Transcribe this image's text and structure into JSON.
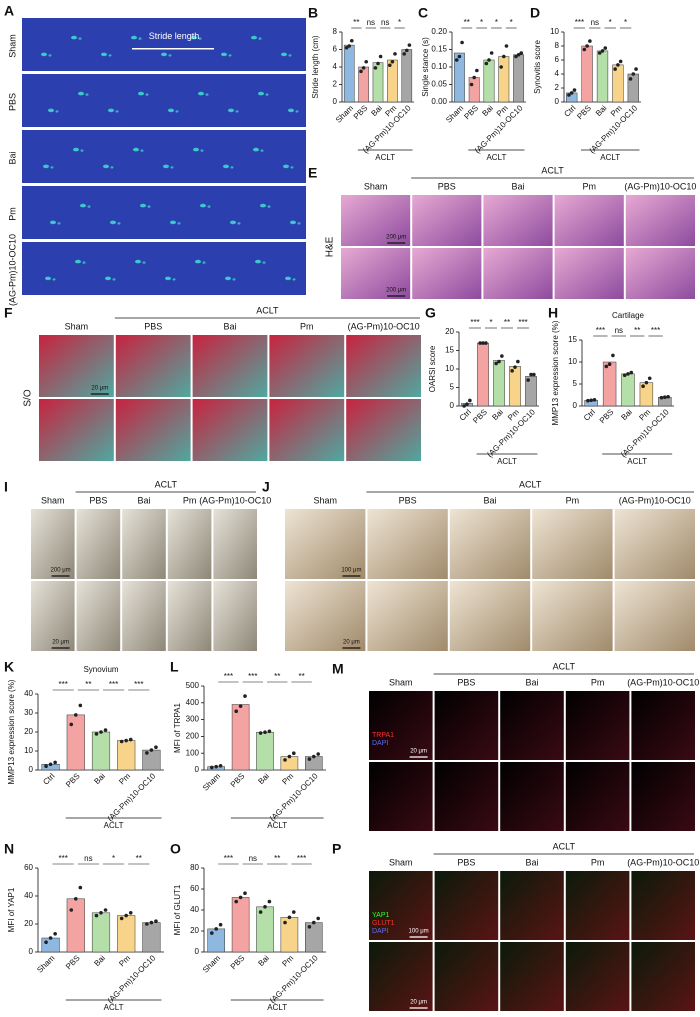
{
  "chart_data": [
    {
      "type": "bar",
      "label": "B",
      "ylabel": "Stride length (cm)",
      "categories": [
        "Sham",
        "PBS",
        "Bai",
        "Pm",
        "(AG-Pm)10-OC10"
      ],
      "values": [
        6.5,
        4.0,
        4.5,
        4.8,
        6.0
      ],
      "points": [
        [
          6.2,
          6.4,
          7.0
        ],
        [
          3.5,
          3.9,
          4.6
        ],
        [
          3.9,
          4.4,
          5.2
        ],
        [
          4.2,
          4.6,
          5.5
        ],
        [
          5.5,
          5.9,
          6.5
        ]
      ],
      "colors": [
        "#8fb8e0",
        "#f4a3a3",
        "#b5dfa9",
        "#f7d48a",
        "#a6a6a6"
      ],
      "ylim": [
        0,
        8
      ],
      "yticks": [
        0,
        2,
        4,
        6,
        8
      ],
      "significance": [
        "**",
        "ns",
        "ns",
        "*"
      ],
      "group_label": "ACLT"
    },
    {
      "type": "bar",
      "label": "C",
      "ylabel": "Single stance (s)",
      "categories": [
        "Sham",
        "PBS",
        "Bai",
        "Pm",
        "(AG-Pm)10-OC10"
      ],
      "values": [
        0.14,
        0.07,
        0.12,
        0.13,
        0.135
      ],
      "points": [
        [
          0.12,
          0.13,
          0.17
        ],
        [
          0.05,
          0.07,
          0.09
        ],
        [
          0.11,
          0.12,
          0.14
        ],
        [
          0.1,
          0.13,
          0.16
        ],
        [
          0.13,
          0.135,
          0.14
        ]
      ],
      "colors": [
        "#8fb8e0",
        "#f4a3a3",
        "#b5dfa9",
        "#f7d48a",
        "#a6a6a6"
      ],
      "ylim": [
        0,
        0.2
      ],
      "yticks": [
        {
          "value": 0,
          "label": "0.00"
        },
        0.05,
        {
          "value": 0.1,
          "label": "0.10"
        },
        0.15,
        {
          "value": 0.2,
          "label": "0.20"
        }
      ],
      "significance": [
        "**",
        "*",
        "*",
        "*"
      ],
      "group_label": "ACLT"
    },
    {
      "type": "bar",
      "label": "D",
      "ylabel": "Synovitis score",
      "categories": [
        "Ctrl",
        "PBS",
        "Bai",
        "Pm",
        "(AG-Pm)10-OC10"
      ],
      "values": [
        1.3,
        8,
        7.3,
        5.3,
        4
      ],
      "points": [
        [
          1,
          1.3,
          1.7
        ],
        [
          7.5,
          8,
          8.7
        ],
        [
          7,
          7.3,
          7.7
        ],
        [
          4.7,
          5.3,
          5.8
        ],
        [
          3.3,
          4,
          4.7
        ]
      ],
      "colors": [
        "#8fb8e0",
        "#f4a3a3",
        "#b5dfa9",
        "#f7d48a",
        "#a6a6a6"
      ],
      "ylim": [
        0,
        10
      ],
      "yticks": [
        0,
        2,
        4,
        6,
        8,
        10
      ],
      "significance": [
        "***",
        "ns",
        "*",
        "*"
      ],
      "group_label": "ACLT"
    },
    {
      "type": "bar",
      "label": "G",
      "ylabel": "OARSI score",
      "categories": [
        "Ctrl",
        "PBS",
        "Bai",
        "Pm",
        "(AG-Pm)10-OC10"
      ],
      "values": [
        0.7,
        17,
        12.3,
        10.7,
        8
      ],
      "points": [
        [
          0,
          0.5,
          1.5
        ],
        [
          17,
          17,
          17
        ],
        [
          11.5,
          12,
          13.5
        ],
        [
          9.5,
          10.5,
          12
        ],
        [
          7,
          8.5,
          8.5
        ]
      ],
      "colors": [
        "#8fb8e0",
        "#f4a3a3",
        "#b5dfa9",
        "#f7d48a",
        "#a6a6a6"
      ],
      "ylim": [
        0,
        20
      ],
      "yticks": [
        0,
        5,
        10,
        15,
        20
      ],
      "significance": [
        "***",
        "*",
        "**",
        "***"
      ],
      "group_label": "ACLT"
    },
    {
      "type": "bar",
      "label": "H",
      "title": "Cartilage",
      "ylabel": "MMP13 expression score (%)",
      "categories": [
        "Ctrl",
        "PBS",
        "Bai",
        "Pm",
        "(AG-Pm)10-OC10"
      ],
      "values": [
        1.3,
        10,
        7.3,
        5.3,
        2
      ],
      "points": [
        [
          1.2,
          1.3,
          1.4
        ],
        [
          9,
          9.5,
          11.5
        ],
        [
          7,
          7.3,
          7.6
        ],
        [
          4.5,
          5.3,
          6.3
        ],
        [
          1.9,
          2,
          2.1
        ]
      ],
      "colors": [
        "#8fb8e0",
        "#f4a3a3",
        "#b5dfa9",
        "#f7d48a",
        "#a6a6a6"
      ],
      "ylim": [
        0,
        15
      ],
      "yticks": [
        0,
        5,
        10,
        15
      ],
      "significance": [
        "***",
        "ns",
        "**",
        "***"
      ],
      "group_label": "ACLT"
    },
    {
      "type": "bar",
      "label": "K",
      "title": "Synovium",
      "ylabel": "MMP13 expression score (%)",
      "categories": [
        "Ctrl",
        "PBS",
        "Bai",
        "Pm",
        "(AG-Pm)10-OC10"
      ],
      "values": [
        3,
        29,
        20,
        15.5,
        10.5
      ],
      "points": [
        [
          2,
          3,
          4
        ],
        [
          24,
          29,
          34
        ],
        [
          19,
          20,
          21
        ],
        [
          15,
          15.5,
          16
        ],
        [
          9,
          10.5,
          12
        ]
      ],
      "colors": [
        "#8fb8e0",
        "#f4a3a3",
        "#b5dfa9",
        "#f7d48a",
        "#a6a6a6"
      ],
      "ylim": [
        0,
        40
      ],
      "yticks": [
        0,
        10,
        20,
        30,
        40
      ],
      "significance": [
        "***",
        "**",
        "***",
        "***"
      ],
      "group_label": "ACLT"
    },
    {
      "type": "bar",
      "label": "L",
      "ylabel": "MFI of TRPA1",
      "categories": [
        "Sham",
        "PBS",
        "Bai",
        "Pm",
        "(AG-Pm)10-OC10"
      ],
      "values": [
        20,
        390,
        225,
        80,
        80
      ],
      "points": [
        [
          15,
          20,
          25
        ],
        [
          350,
          380,
          440
        ],
        [
          220,
          225,
          230
        ],
        [
          60,
          80,
          100
        ],
        [
          65,
          80,
          95
        ]
      ],
      "colors": [
        "#8fb8e0",
        "#f4a3a3",
        "#b5dfa9",
        "#f7d48a",
        "#a6a6a6"
      ],
      "ylim": [
        0,
        500
      ],
      "yticks": [
        0,
        100,
        200,
        300,
        400,
        500
      ],
      "significance": [
        "***",
        "***",
        "**",
        "**"
      ],
      "group_label": "ACLT"
    },
    {
      "type": "bar",
      "label": "N",
      "ylabel": "MFI of YAP1",
      "categories": [
        "Sham",
        "PBS",
        "Bai",
        "Pm",
        "(AG-Pm)10-OC10"
      ],
      "values": [
        10,
        38,
        28,
        26,
        21
      ],
      "points": [
        [
          7,
          10,
          13
        ],
        [
          30,
          38,
          46
        ],
        [
          26,
          28,
          30
        ],
        [
          24,
          26,
          28
        ],
        [
          20,
          21,
          22
        ]
      ],
      "colors": [
        "#8fb8e0",
        "#f4a3a3",
        "#b5dfa9",
        "#f7d48a",
        "#a6a6a6"
      ],
      "ylim": [
        0,
        60
      ],
      "yticks": [
        0,
        20,
        40,
        60
      ],
      "significance": [
        "***",
        "ns",
        "*",
        "**"
      ],
      "group_label": "ACLT"
    },
    {
      "type": "bar",
      "label": "O",
      "ylabel": "MFI of GLUT1",
      "categories": [
        "Sham",
        "PBS",
        "Bai",
        "Pm",
        "(AG-Pm)10-OC10"
      ],
      "values": [
        22,
        52,
        43,
        33,
        28
      ],
      "points": [
        [
          18,
          22,
          26
        ],
        [
          48,
          52,
          56
        ],
        [
          38,
          43,
          48
        ],
        [
          28,
          33,
          38
        ],
        [
          24,
          28,
          32
        ]
      ],
      "colors": [
        "#8fb8e0",
        "#f4a3a3",
        "#b5dfa9",
        "#f7d48a",
        "#a6a6a6"
      ],
      "ylim": [
        0,
        80
      ],
      "yticks": [
        0,
        20,
        40,
        60,
        80
      ],
      "significance": [
        "***",
        "ns",
        "**",
        "***"
      ],
      "group_label": "ACLT"
    }
  ],
  "panels": {
    "A": {
      "label": "A",
      "rows": [
        "Sham",
        "PBS",
        "Bai",
        "Pm",
        "(AG-Pm)10-OC10"
      ],
      "annotation": "Stride length"
    },
    "E": {
      "label": "E",
      "group_label": "ACLT",
      "columns": [
        "Sham",
        "PBS",
        "Bai",
        "Pm",
        "(AG-Pm)10-OC10"
      ],
      "row_label": "H&E",
      "scale_bars": [
        "200 μm",
        "200 μm"
      ]
    },
    "F": {
      "label": "F",
      "group_label": "ACLT",
      "columns": [
        "Sham",
        "PBS",
        "Bai",
        "Pm",
        "(AG-Pm)10-OC10"
      ],
      "row_label": "S/O",
      "scale_bars": [
        "20 μm"
      ]
    },
    "I": {
      "label": "I",
      "group_label": "ACLT",
      "columns": [
        "Sham",
        "PBS",
        "Bai",
        "Pm",
        "(AG-Pm)10-OC10"
      ],
      "scale_bars": [
        "200 μm",
        "20 μm"
      ]
    },
    "J": {
      "label": "J",
      "group_label": "ACLT",
      "columns": [
        "Sham",
        "PBS",
        "Bai",
        "Pm",
        "(AG-Pm)10-OC10"
      ],
      "scale_bars": [
        "100 μm",
        "20 μm"
      ]
    },
    "M": {
      "label": "M",
      "group_label": "ACLT",
      "columns": [
        "Sham",
        "PBS",
        "Bai",
        "Pm",
        "(AG-Pm)10-OC10"
      ],
      "channels": [
        "TRPA1",
        "DAPI"
      ],
      "scale_bars": [
        "20 μm"
      ]
    },
    "P": {
      "label": "P",
      "group_label": "ACLT",
      "columns": [
        "Sham",
        "PBS",
        "Bai",
        "Pm",
        "(AG-Pm)10-OC10"
      ],
      "channels": [
        "YAP1",
        "GLUT1",
        "DAPI"
      ],
      "scale_bars": [
        "100 μm",
        "20 μm"
      ]
    }
  }
}
